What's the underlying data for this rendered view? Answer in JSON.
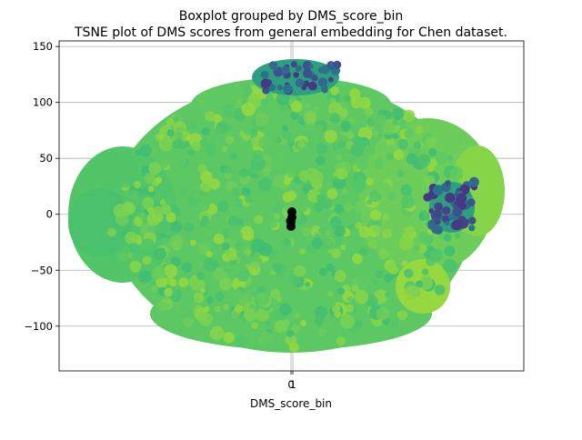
{
  "chart_data": {
    "type": "scatter",
    "title": "Boxplot grouped by DMS_score_bin",
    "subtitle": "TSNE plot of DMS scores from general embedding for Chen dataset.",
    "xlabel": "DMS_score_bin",
    "ylabel": "",
    "x_ticks": [
      "0",
      "1"
    ],
    "y_ticks": [
      150,
      100,
      50,
      0,
      -50,
      -100
    ],
    "ylim": [
      -140,
      155
    ],
    "grid": true,
    "legend": "none",
    "colormap": "viridis",
    "colors": {
      "cluster_main": "#5cc863",
      "cluster_light": "#7ad151",
      "cluster_teal": "#2e9f7e",
      "cluster_dark": "#443a83",
      "marker_black": "#000000",
      "grid": "#b0b0b0"
    },
    "series": [
      {
        "points": [
          [
            -160,
            20
          ],
          [
            -140,
            -40
          ],
          [
            -100,
            80
          ],
          [
            -80,
            -90
          ],
          [
            -50,
            120
          ],
          [
            0,
            100
          ],
          [
            40,
            -110
          ],
          [
            90,
            90
          ],
          [
            130,
            40
          ],
          [
            140,
            -40
          ],
          [
            60,
            -80
          ],
          [
            -120,
            10
          ]
        ]
      },
      {
        "points": [
          [
            0,
            138
          ],
          [
            10,
            130
          ],
          [
            20,
            125
          ],
          [
            -10,
            132
          ],
          [
            150,
            10
          ],
          [
            160,
            0
          ],
          [
            155,
            -10
          ],
          [
            165,
            20
          ]
        ]
      },
      {
        "points": [
          [
            0,
            0
          ],
          [
            0,
            -5
          ],
          [
            0,
            -10
          ],
          [
            0,
            5
          ],
          [
            0,
            2
          ]
        ]
      }
    ]
  }
}
